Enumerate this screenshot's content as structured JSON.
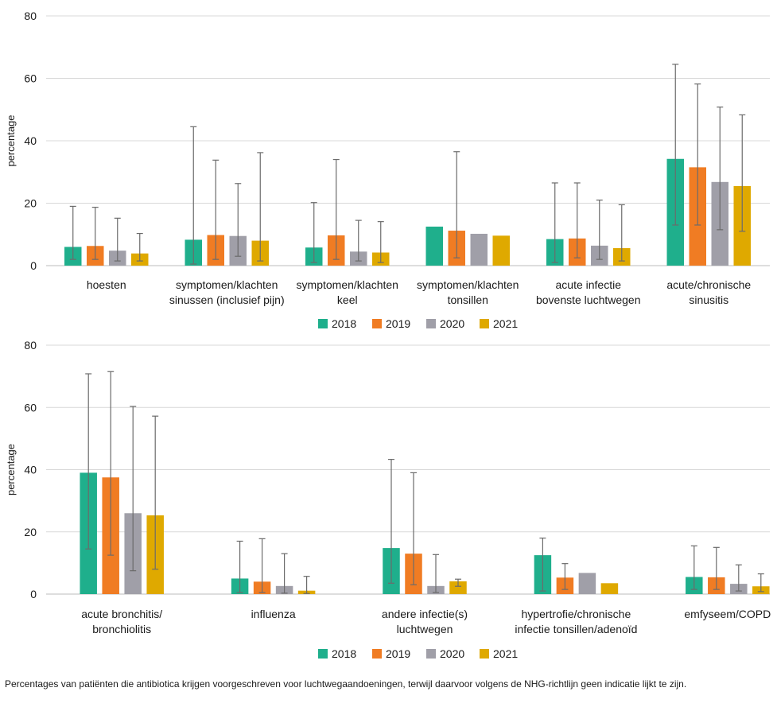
{
  "chart_data": [
    {
      "type": "bar",
      "ylabel": "percentage",
      "ylim": [
        0,
        80
      ],
      "yticks": [
        "0",
        "20",
        "40",
        "60",
        "80"
      ],
      "grid": true,
      "legend_position": "bottom-center",
      "categories": [
        [
          "hoesten"
        ],
        [
          "symptomen/klachten",
          "sinussen (inclusief pijn)"
        ],
        [
          "symptomen/klachten",
          "keel"
        ],
        [
          "symptomen/klachten",
          "tonsillen"
        ],
        [
          "acute infectie",
          "bovenste luchtwegen"
        ],
        [
          "acute/chronische",
          "sinusitis"
        ]
      ],
      "series": [
        {
          "name": "2018",
          "values": [
            6,
            8.3,
            5.8,
            12.5,
            8.5,
            34.2
          ],
          "err_low": [
            2,
            0.5,
            1,
            null,
            1,
            13
          ],
          "err_high": [
            19,
            44.5,
            20.2,
            null,
            26.5,
            64.5
          ]
        },
        {
          "name": "2019",
          "values": [
            6.3,
            9.8,
            9.7,
            11.2,
            8.7,
            31.5
          ],
          "err_low": [
            2,
            2,
            2,
            2.5,
            2.5,
            13
          ],
          "err_high": [
            18.7,
            33.8,
            34,
            36.5,
            26.5,
            58.2
          ]
        },
        {
          "name": "2020",
          "values": [
            4.8,
            9.5,
            4.5,
            10.2,
            6.4,
            26.8
          ],
          "err_low": [
            1.5,
            3,
            1.5,
            null,
            2,
            11.5
          ],
          "err_high": [
            15.2,
            26.3,
            14.5,
            null,
            21,
            50.8
          ]
        },
        {
          "name": "2021",
          "values": [
            3.9,
            8,
            4.2,
            9.6,
            5.6,
            25.5
          ],
          "err_low": [
            1.5,
            1.5,
            1,
            null,
            1.5,
            11
          ],
          "err_high": [
            10.3,
            36.2,
            14.1,
            null,
            19.5,
            48.3
          ]
        }
      ]
    },
    {
      "type": "bar",
      "ylabel": "percentage",
      "ylim": [
        0,
        80
      ],
      "yticks": [
        "0",
        "20",
        "40",
        "60",
        "80"
      ],
      "grid": true,
      "legend_position": "bottom-center",
      "categories": [
        [
          "acute bronchitis/",
          "bronchiolitis"
        ],
        [
          "influenza"
        ],
        [
          "andere infectie(s)",
          "luchtwegen"
        ],
        [
          "hypertrofie/chronische",
          "infectie tonsillen/adenoïd"
        ],
        [
          "emfyseem/COPD"
        ]
      ],
      "series": [
        {
          "name": "2018",
          "values": [
            39,
            5,
            14.8,
            12.5,
            5.5
          ],
          "err_low": [
            14.5,
            0.5,
            3.5,
            1,
            1.5
          ],
          "err_high": [
            70.8,
            17,
            43.3,
            18,
            15.5
          ]
        },
        {
          "name": "2019",
          "values": [
            37.5,
            4,
            13,
            5.3,
            5.4
          ],
          "err_low": [
            12.5,
            0.5,
            3,
            1.5,
            1.5
          ],
          "err_high": [
            71.5,
            17.8,
            39,
            9.8,
            15
          ]
        },
        {
          "name": "2020",
          "values": [
            26,
            2.6,
            2.6,
            6.8,
            3.3
          ],
          "err_low": [
            7.5,
            0.3,
            0.5,
            null,
            1
          ],
          "err_high": [
            60.3,
            13,
            12.7,
            null,
            9.4
          ]
        },
        {
          "name": "2021",
          "values": [
            25.3,
            1.1,
            4.1,
            3.5,
            2.5
          ],
          "err_low": [
            8,
            0.2,
            2.5,
            null,
            0.8
          ],
          "err_high": [
            57.2,
            5.7,
            4.8,
            null,
            6.5
          ]
        }
      ]
    }
  ],
  "legend_colors": {
    "2018": "#1faf8c",
    "2019": "#f07c23",
    "2020": "#a09fa8",
    "2021": "#dfa900"
  },
  "caption": "Percentages van patiënten die antibiotica krijgen voorgeschreven voor luchtwegaandoeningen, terwijl daarvoor volgens de NHG-richtlijn geen indicatie lijkt te zijn."
}
